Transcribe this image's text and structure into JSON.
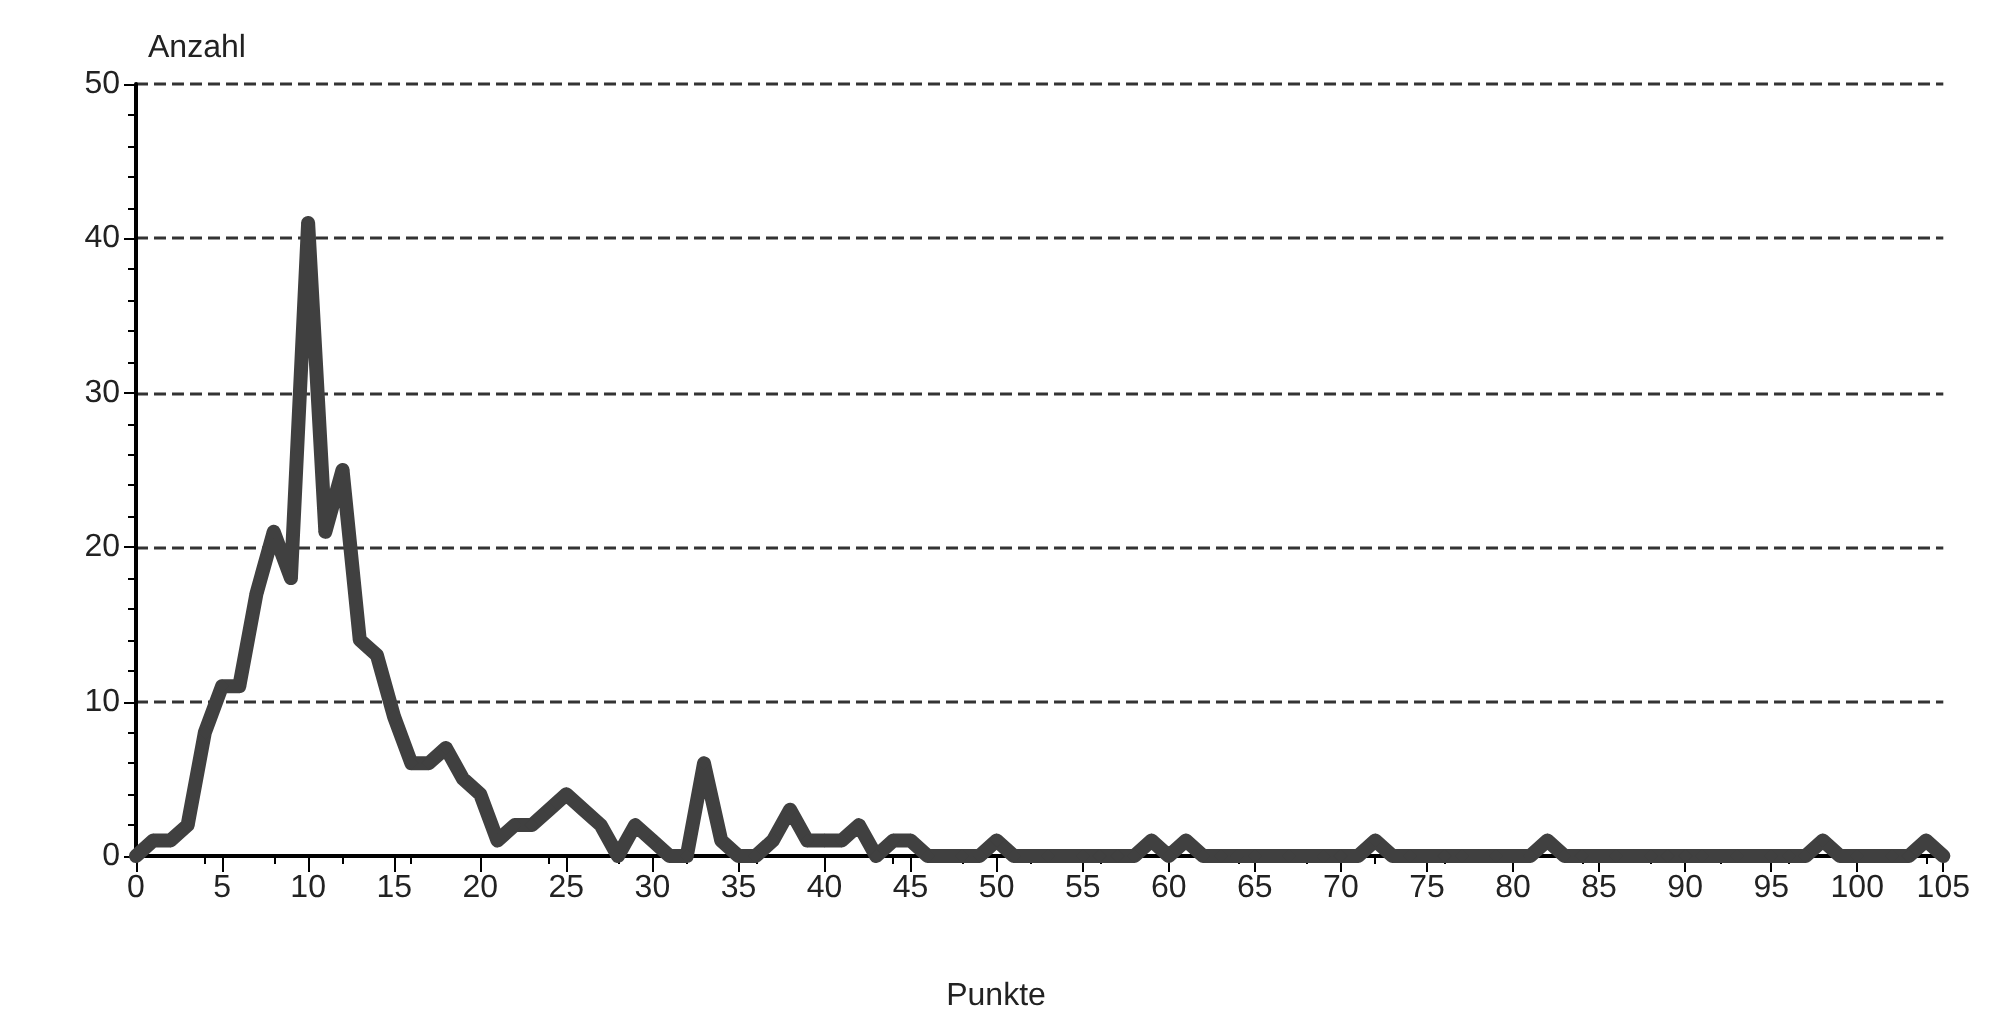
{
  "chart_data": {
    "type": "line",
    "xlabel": "Punkte",
    "ylabel": "Anzahl",
    "x": [
      0,
      1,
      2,
      3,
      4,
      5,
      6,
      7,
      8,
      9,
      10,
      11,
      12,
      13,
      14,
      15,
      16,
      17,
      18,
      19,
      20,
      21,
      22,
      23,
      24,
      25,
      26,
      27,
      28,
      29,
      30,
      31,
      32,
      33,
      34,
      35,
      36,
      37,
      38,
      39,
      40,
      41,
      42,
      43,
      44,
      45,
      46,
      47,
      48,
      49,
      50,
      51,
      52,
      53,
      54,
      55,
      56,
      57,
      58,
      59,
      60,
      61,
      62,
      63,
      64,
      65,
      66,
      67,
      68,
      69,
      70,
      71,
      72,
      73,
      74,
      75,
      76,
      77,
      78,
      79,
      80,
      81,
      82,
      83,
      84,
      85,
      86,
      87,
      88,
      89,
      90,
      91,
      92,
      93,
      94,
      95,
      96,
      97,
      98,
      99,
      100,
      101,
      102,
      103,
      104,
      105
    ],
    "series": [
      {
        "color": "#404040",
        "values": [
          0,
          1,
          1,
          2,
          8,
          11,
          11,
          17,
          21,
          18,
          41,
          21,
          25,
          14,
          13,
          9,
          6,
          6,
          7,
          5,
          4,
          1,
          2,
          2,
          3,
          4,
          3,
          2,
          0,
          2,
          1,
          0,
          0,
          6,
          1,
          0,
          0,
          1,
          3,
          1,
          1,
          1,
          2,
          0,
          1,
          1,
          0,
          0,
          0,
          0,
          1,
          0,
          0,
          0,
          0,
          0,
          0,
          0,
          0,
          1,
          0,
          1,
          0,
          0,
          0,
          0,
          0,
          0,
          0,
          0,
          0,
          0,
          1,
          0,
          0,
          0,
          0,
          0,
          0,
          0,
          0,
          0,
          1,
          0,
          0,
          0,
          0,
          0,
          0,
          0,
          0,
          0,
          0,
          0,
          0,
          0,
          0,
          0,
          1,
          0,
          0,
          0,
          0,
          0,
          1,
          0
        ]
      }
    ],
    "xlim": [
      0,
      105
    ],
    "xticks": [
      0,
      5,
      10,
      15,
      20,
      25,
      30,
      35,
      40,
      45,
      50,
      55,
      60,
      65,
      70,
      75,
      80,
      85,
      90,
      95,
      100,
      105
    ],
    "ylim": [
      0,
      50
    ],
    "yticks": [
      0,
      10,
      20,
      30,
      40,
      50
    ],
    "grid": "y",
    "marker": "diamond",
    "line_style": "solid"
  }
}
